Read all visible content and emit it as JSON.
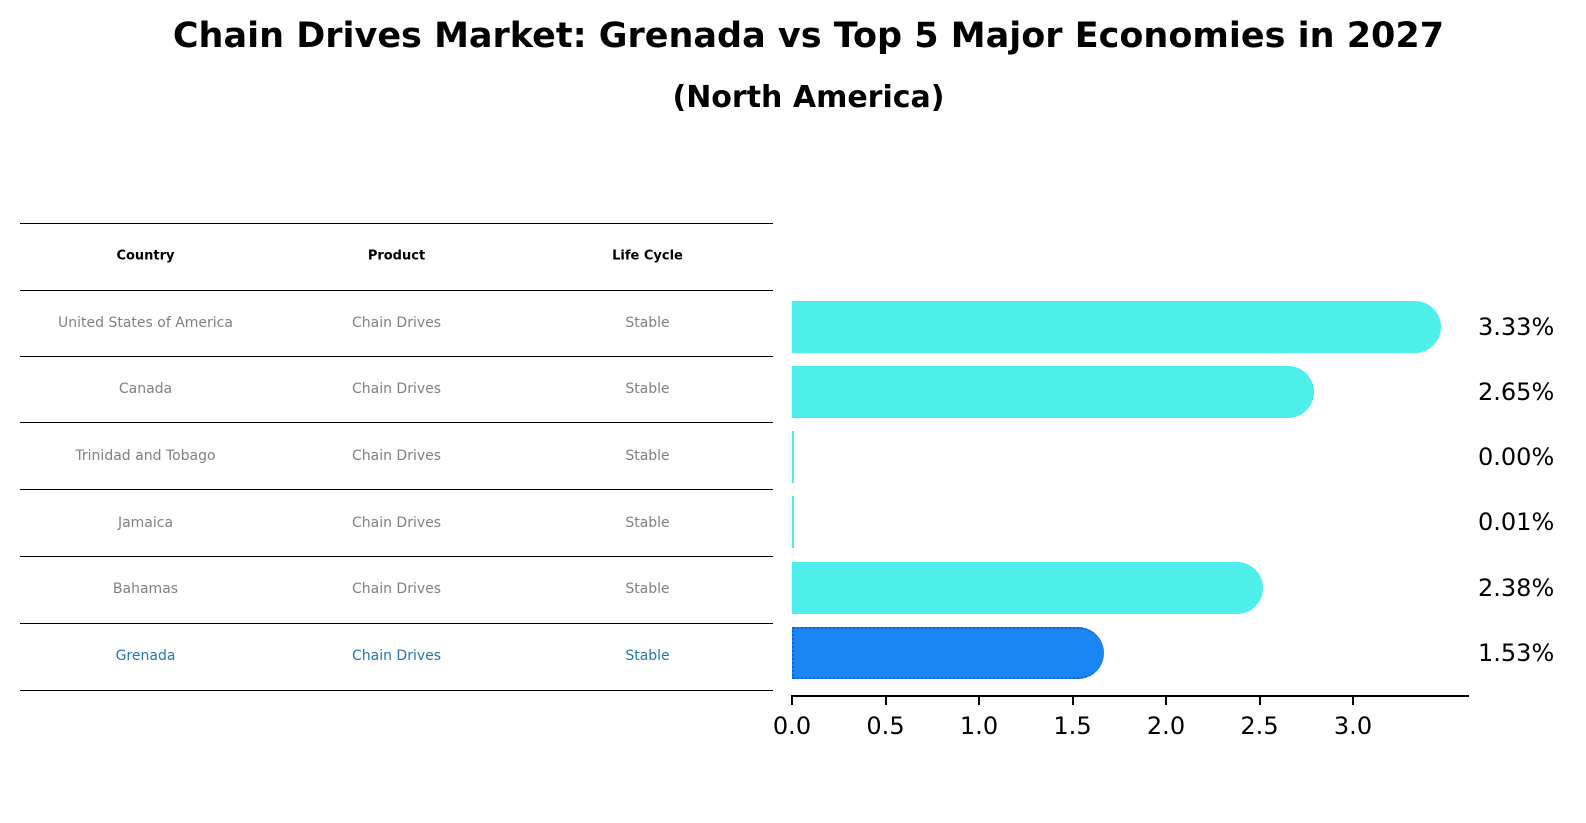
{
  "header": {
    "title": "Chain Drives Market: Grenada vs Top 5 Major Economies in 2027",
    "subtitle": "(North America)"
  },
  "table": {
    "columns": [
      "Country",
      "Product",
      "Life Cycle"
    ],
    "rows": [
      {
        "country": "United States of America",
        "product": "Chain Drives",
        "life_cycle": "Stable",
        "highlight": false
      },
      {
        "country": "Canada",
        "product": "Chain Drives",
        "life_cycle": "Stable",
        "highlight": false
      },
      {
        "country": "Trinidad and Tobago",
        "product": "Chain Drives",
        "life_cycle": "Stable",
        "highlight": false
      },
      {
        "country": "Jamaica",
        "product": "Chain Drives",
        "life_cycle": "Stable",
        "highlight": false
      },
      {
        "country": "Bahamas",
        "product": "Chain Drives",
        "life_cycle": "Stable",
        "highlight": false
      },
      {
        "country": "Grenada",
        "product": "Chain Drives",
        "life_cycle": "Stable",
        "highlight": true
      }
    ]
  },
  "colors": {
    "bar": "#4eeeea",
    "highlight_bar": "#1a85f5",
    "highlight_text": "#1f77b4",
    "body_text": "#808080"
  },
  "chart_data": {
    "type": "bar",
    "orientation": "horizontal",
    "title": "Chain Drives Market: Grenada vs Top 5 Major Economies in 2027",
    "subtitle": "(North America)",
    "categories": [
      "United States of America",
      "Canada",
      "Trinidad and Tobago",
      "Jamaica",
      "Bahamas",
      "Grenada"
    ],
    "values": [
      3.33,
      2.65,
      0.0,
      0.01,
      2.38,
      1.53
    ],
    "value_labels": [
      "3.33%",
      "2.65%",
      "0.00%",
      "0.01%",
      "2.38%",
      "1.53%"
    ],
    "highlight": "Grenada",
    "xlabel": "",
    "ylabel": "",
    "xlim": [
      0,
      3.5
    ],
    "xticks": [
      "0.0",
      "0.5",
      "1.0",
      "1.5",
      "2.0",
      "2.5",
      "3.0"
    ],
    "grid": false,
    "legend": null
  }
}
